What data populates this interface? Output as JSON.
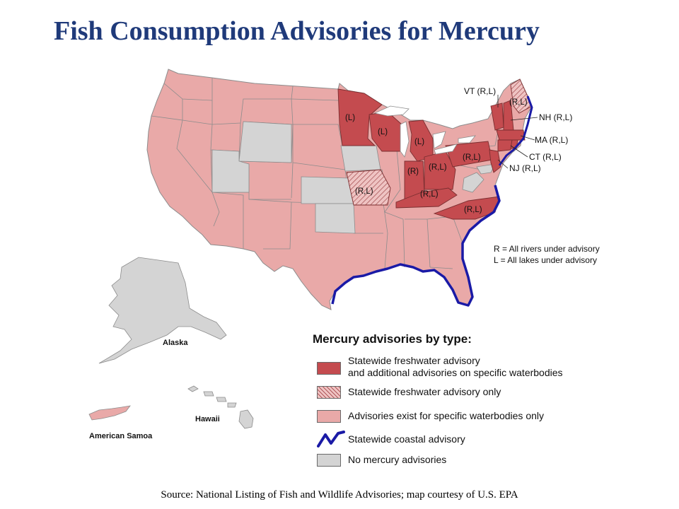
{
  "title": "Fish Consumption Advisories for Mercury",
  "colors": {
    "statewide_and_specific": "#c44b4f",
    "statewide_only_hatch": "#efc4c3",
    "specific_only": "#e9a9a8",
    "coastal": "#1a1aa6",
    "none": "#d4d4d4"
  },
  "state_labels": {
    "mn": "(L)",
    "wi": "(L)",
    "mi": "(L)",
    "pa": "(R,L)",
    "oh": "(R,L)",
    "in": "(R)",
    "ky": "(R,L)",
    "mo": "(R,L)",
    "nc": "(R,L)",
    "me": "(R,L)"
  },
  "callouts": {
    "vt": "VT (R,L)",
    "nh": "NH (R,L)",
    "ma": "MA (R,L)",
    "ct": "CT (R,L)",
    "nj": "NJ (R,L)"
  },
  "key": {
    "r": "R = All rivers under advisory",
    "l": "L = All lakes under advisory"
  },
  "territories": {
    "alaska": "Alaska",
    "hawaii": "Hawaii",
    "american_samoa": "American Samoa"
  },
  "legend": {
    "title": "Mercury advisories by type:",
    "items": [
      {
        "line1": "Statewide freshwater advisory",
        "line2": "and additional advisories on specific waterbodies"
      },
      {
        "line1": "Statewide freshwater advisory only"
      },
      {
        "line1": "Advisories exist for specific waterbodies only"
      },
      {
        "line1": "Statewide coastal advisory"
      },
      {
        "line1": "No mercury advisories"
      }
    ]
  },
  "source": "Source: National Listing of Fish and Wildlife Advisories;  map courtesy of U.S. EPA"
}
